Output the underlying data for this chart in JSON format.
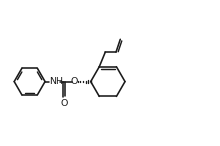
{
  "bg_color": "#ffffff",
  "line_color": "#1a1a1a",
  "lw": 1.15,
  "fs": 6.8,
  "fig_w": 2.2,
  "fig_h": 1.46,
  "dpi": 100,
  "xlim": [
    0.3,
    10.5
  ],
  "ylim": [
    1.2,
    6.8
  ]
}
